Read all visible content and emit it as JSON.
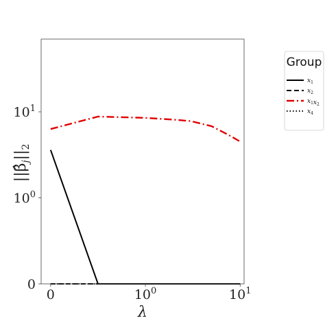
{
  "chart_data": {
    "type": "line",
    "xlabel": "λ",
    "ylabel": "||β̂j||2",
    "x_scale": "symlog",
    "y_scale": "symlog",
    "xlim": [
      -0.1,
      11
    ],
    "ylim": [
      0,
      70
    ],
    "x_ticks": [
      {
        "value": 0,
        "label": "0"
      },
      {
        "value": 1,
        "label": "10",
        "sup": "0"
      },
      {
        "value": 10,
        "label": "10",
        "sup": "1"
      }
    ],
    "y_ticks": [
      {
        "value": 0,
        "label": "0"
      },
      {
        "value": 1,
        "label": "10",
        "sup": "0"
      },
      {
        "value": 10,
        "label": "10",
        "sup": "1"
      }
    ],
    "grid": false,
    "legend": {
      "title": "Group",
      "placement": "outside-right-top"
    },
    "series": [
      {
        "name": "x1",
        "name_base": "x",
        "name_sub": "1",
        "color": "#000000",
        "style": "solid",
        "x": [
          0,
          0.5,
          10
        ],
        "y": [
          3.6,
          0,
          0
        ]
      },
      {
        "name": "x2",
        "name_base": "x",
        "name_sub": "2",
        "color": "#000000",
        "style": "dashed",
        "x": [
          0,
          10
        ],
        "y": [
          0,
          0
        ]
      },
      {
        "name": "x1x2",
        "name_base": "x",
        "name_sub": "1",
        "name_base2": "x",
        "name_sub2": "2",
        "color": "#e00000",
        "style": "dashdot",
        "x": [
          0,
          0.5,
          1,
          2,
          3,
          5,
          8,
          10
        ],
        "y": [
          6.3,
          8.8,
          8.5,
          8.1,
          7.8,
          6.8,
          5.2,
          4.5
        ]
      },
      {
        "name": "x4",
        "name_base": "x",
        "name_sub": "4",
        "color": "#000000",
        "style": "dotted",
        "x": [
          0,
          10
        ],
        "y": [
          0,
          0
        ]
      }
    ]
  }
}
